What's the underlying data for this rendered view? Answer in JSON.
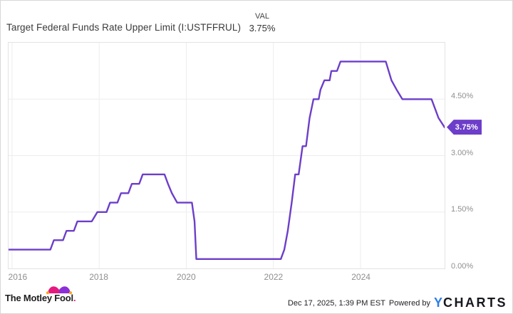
{
  "header": {
    "title": "Target Federal Funds Rate Upper Limit (I:USTFFRUL)",
    "val_label": "VAL",
    "val_value": "3.75%"
  },
  "chart_data": {
    "type": "line",
    "title": "Target Federal Funds Rate Upper Limit (I:USTFFRUL)",
    "unit": "percent",
    "line_color": "#6c3ec9",
    "grid": true,
    "x_domain": [
      2015.92,
      2025.93
    ],
    "y_domain": [
      0,
      6
    ],
    "x_ticks": [
      {
        "label": "2016",
        "year": 2016
      },
      {
        "label": "2018",
        "year": 2018
      },
      {
        "label": "2020",
        "year": 2020
      },
      {
        "label": "2022",
        "year": 2022
      },
      {
        "label": "2024",
        "year": 2024
      }
    ],
    "y_ticks": [
      {
        "label": "0.00%",
        "value": 0
      },
      {
        "label": "1.50%",
        "value": 1.5
      },
      {
        "label": "3.00%",
        "value": 3
      },
      {
        "label": "4.50%",
        "value": 4.5
      }
    ],
    "last_value_label": "3.75%",
    "series": [
      {
        "name": "Target Federal Funds Rate Upper Limit",
        "points": [
          [
            2015.92,
            0.5
          ],
          [
            2016.88,
            0.5
          ],
          [
            2016.96,
            0.75
          ],
          [
            2017.17,
            0.75
          ],
          [
            2017.25,
            1.0
          ],
          [
            2017.42,
            1.0
          ],
          [
            2017.5,
            1.25
          ],
          [
            2017.83,
            1.25
          ],
          [
            2017.96,
            1.5
          ],
          [
            2018.17,
            1.5
          ],
          [
            2018.25,
            1.75
          ],
          [
            2018.42,
            1.75
          ],
          [
            2018.5,
            2.0
          ],
          [
            2018.67,
            2.0
          ],
          [
            2018.75,
            2.25
          ],
          [
            2018.92,
            2.25
          ],
          [
            2019.0,
            2.5
          ],
          [
            2019.5,
            2.5
          ],
          [
            2019.58,
            2.25
          ],
          [
            2019.67,
            2.0
          ],
          [
            2019.79,
            1.75
          ],
          [
            2020.13,
            1.75
          ],
          [
            2020.19,
            1.25
          ],
          [
            2020.23,
            0.25
          ],
          [
            2022.17,
            0.25
          ],
          [
            2022.25,
            0.5
          ],
          [
            2022.33,
            1.0
          ],
          [
            2022.42,
            1.75
          ],
          [
            2022.5,
            2.5
          ],
          [
            2022.58,
            2.5
          ],
          [
            2022.67,
            3.25
          ],
          [
            2022.75,
            3.25
          ],
          [
            2022.83,
            4.0
          ],
          [
            2022.92,
            4.5
          ],
          [
            2023.04,
            4.5
          ],
          [
            2023.08,
            4.75
          ],
          [
            2023.17,
            5.0
          ],
          [
            2023.29,
            5.0
          ],
          [
            2023.33,
            5.25
          ],
          [
            2023.46,
            5.25
          ],
          [
            2023.54,
            5.5
          ],
          [
            2024.58,
            5.5
          ],
          [
            2024.71,
            5.0
          ],
          [
            2024.83,
            4.75
          ],
          [
            2024.96,
            4.5
          ],
          [
            2025.63,
            4.5
          ],
          [
            2025.71,
            4.25
          ],
          [
            2025.79,
            4.0
          ],
          [
            2025.93,
            3.75
          ]
        ]
      }
    ]
  },
  "footer": {
    "motley_fool_text": "The Motley Fool",
    "motley_fool_period": ".",
    "timestamp": "Dec 17, 2025, 1:39 PM EST",
    "powered_by": "Powered by",
    "ycharts_y": "Y",
    "ycharts_rest": "CHARTS",
    "brand_colors": {
      "tmf_pink": "#e6197f",
      "tmf_purple": "#8b2fd6",
      "tmf_gold": "#f6a81c",
      "ycharts_blue": "#2c7de6"
    }
  }
}
